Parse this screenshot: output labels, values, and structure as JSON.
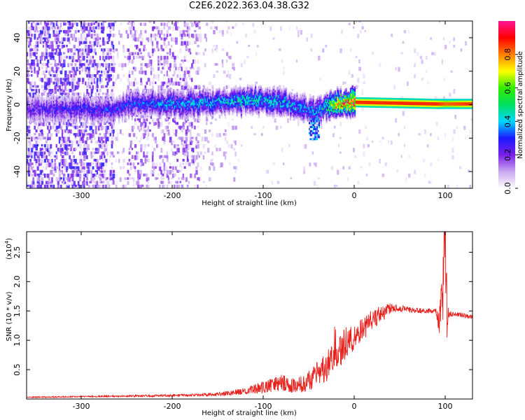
{
  "title": "C2E6.2022.363.04.38.G32",
  "chart_data": [
    {
      "type": "heatmap",
      "xlabel": "Height of straight line (km)",
      "ylabel": "Frequency (Hz)",
      "xlim": [
        -360,
        130
      ],
      "ylim": [
        -50,
        50
      ],
      "xticks": [
        -300,
        -200,
        -100,
        0,
        100
      ],
      "yticks": [
        -40,
        -20,
        0,
        20,
        40
      ],
      "grid": false,
      "colorbar": {
        "label": "Normalized spectral amplitude",
        "range": [
          0,
          1
        ],
        "ticks": [
          "0.0",
          "0.2",
          "0.4",
          "0.6",
          "0.8"
        ],
        "colors": [
          "#ffffff",
          "#c8a8f0",
          "#7a1ee8",
          "#1a1aff",
          "#00d8ff",
          "#00e060",
          "#33ee00",
          "#ffff00",
          "#ff8000",
          "#ff0000",
          "#ff1493"
        ]
      },
      "ridge": {
        "x": [
          -350,
          -300,
          -265,
          -250,
          -200,
          -170,
          -150,
          -120,
          -100,
          -80,
          -60,
          -45,
          -35,
          -20,
          0,
          90,
          100,
          130
        ],
        "frequency": [
          -3,
          -3,
          -4,
          0,
          0,
          0,
          1,
          2,
          2,
          1,
          -2,
          -5,
          -2,
          0,
          1,
          0,
          0,
          0
        ],
        "amplitude": [
          0.25,
          0.3,
          0.3,
          0.32,
          0.38,
          0.4,
          0.42,
          0.45,
          0.45,
          0.42,
          0.4,
          0.38,
          0.45,
          0.8,
          0.95,
          0.95,
          0.9,
          0.95
        ]
      }
    },
    {
      "type": "line",
      "xlabel": "Height of straight line (km)",
      "ylabel": "SNR (10 * v/v)",
      "y_multiplier": "(x10",
      "y_multiplier_exp": "4",
      "y_multiplier_close": ")",
      "xlim": [
        -360,
        130
      ],
      "ylim": [
        0,
        2.85
      ],
      "xticks": [
        -300,
        -200,
        -100,
        0,
        100
      ],
      "yticks": [
        0.5,
        1.0,
        1.5,
        2.0,
        2.5
      ],
      "ytick_labels": [
        "0.5",
        "1.0",
        "1.5",
        "2.0",
        "2.5"
      ],
      "series": [
        {
          "color": "#e8201c",
          "x": [
            -360,
            -300,
            -200,
            -150,
            -120,
            -100,
            -90,
            -80,
            -70,
            -60,
            -50,
            -40,
            -30,
            -25,
            -20,
            -15,
            -10,
            -5,
            0,
            10,
            20,
            30,
            40,
            50,
            60,
            80,
            90,
            95,
            98,
            100,
            102,
            105,
            110,
            120,
            130
          ],
          "y": [
            0.03,
            0.04,
            0.06,
            0.08,
            0.13,
            0.2,
            0.24,
            0.28,
            0.22,
            0.24,
            0.32,
            0.42,
            0.55,
            0.7,
            0.95,
            0.85,
            0.95,
            1.0,
            1.05,
            1.2,
            1.35,
            1.45,
            1.55,
            1.55,
            1.52,
            1.5,
            1.5,
            1.4,
            2.2,
            2.6,
            1.3,
            1.45,
            1.45,
            1.42,
            1.4
          ],
          "noise": [
            0.01,
            0.01,
            0.02,
            0.03,
            0.06,
            0.1,
            0.12,
            0.15,
            0.12,
            0.14,
            0.18,
            0.22,
            0.25,
            0.3,
            0.4,
            0.3,
            0.3,
            0.25,
            0.22,
            0.2,
            0.18,
            0.15,
            0.08,
            0.06,
            0.05,
            0.04,
            0.04,
            0.6,
            0.8,
            0.9,
            0.6,
            0.05,
            0.04,
            0.04,
            0.04
          ]
        }
      ]
    }
  ]
}
